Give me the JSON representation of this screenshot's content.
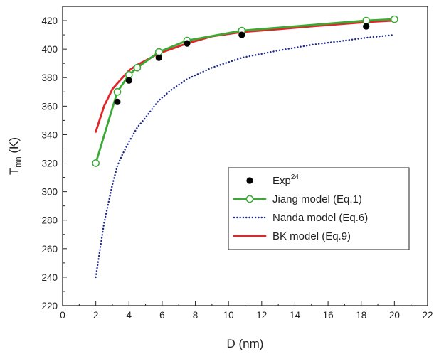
{
  "chart_data": {
    "type": "line",
    "xlabel": "D (nm)",
    "ylabel": {
      "main": "T",
      "sub": "mn",
      "rest": " (K)"
    },
    "xlim": [
      0,
      22
    ],
    "ylim": [
      220,
      430
    ],
    "xticks": [
      0,
      2,
      4,
      6,
      8,
      10,
      12,
      14,
      16,
      18,
      20,
      22
    ],
    "yticks": [
      220,
      240,
      260,
      280,
      300,
      320,
      340,
      360,
      380,
      400,
      420
    ],
    "grid": false,
    "legend_position": "bottom-right",
    "series": [
      {
        "name": "Exp",
        "name_superscript": "24",
        "style": "scatter",
        "marker": "filled-circle",
        "color": "#000000",
        "x": [
          3.3,
          4.0,
          5.8,
          7.5,
          10.8,
          18.3
        ],
        "y": [
          363,
          378,
          394,
          404,
          410,
          416
        ]
      },
      {
        "name": "Jiang model (Eq.1)",
        "style": "line",
        "marker": "open-circle",
        "color": "#3aaa35",
        "x": [
          2.0,
          3.3,
          4.0,
          4.5,
          5.8,
          7.5,
          10.8,
          18.3,
          20.0
        ],
        "y": [
          320,
          370,
          382,
          387,
          398,
          406,
          413,
          420,
          421
        ]
      },
      {
        "name": "Nanda model (Eq.6)",
        "style": "dotted",
        "color": "#1f2a8c",
        "x": [
          2.0,
          2.5,
          3.0,
          3.3,
          3.6,
          4.0,
          4.5,
          5.0,
          5.8,
          6.5,
          7.5,
          9.0,
          10.8,
          13.0,
          15.0,
          17.0,
          18.3,
          20.0
        ],
        "y": [
          240,
          278,
          305,
          318,
          326,
          335,
          345,
          352,
          364,
          371,
          379,
          387,
          394,
          399,
          403,
          406,
          408,
          410
        ]
      },
      {
        "name": "BK model (Eq.9)",
        "style": "line",
        "color": "#e0262b",
        "x": [
          2.0,
          2.5,
          3.0,
          3.3,
          4.0,
          4.5,
          5.0,
          5.8,
          7.5,
          9.0,
          10.8,
          13.0,
          15.0,
          18.3,
          20.0
        ],
        "y": [
          342,
          360,
          372,
          376,
          385,
          389,
          392,
          397,
          404,
          409,
          412,
          414,
          416,
          419,
          420
        ]
      }
    ]
  }
}
